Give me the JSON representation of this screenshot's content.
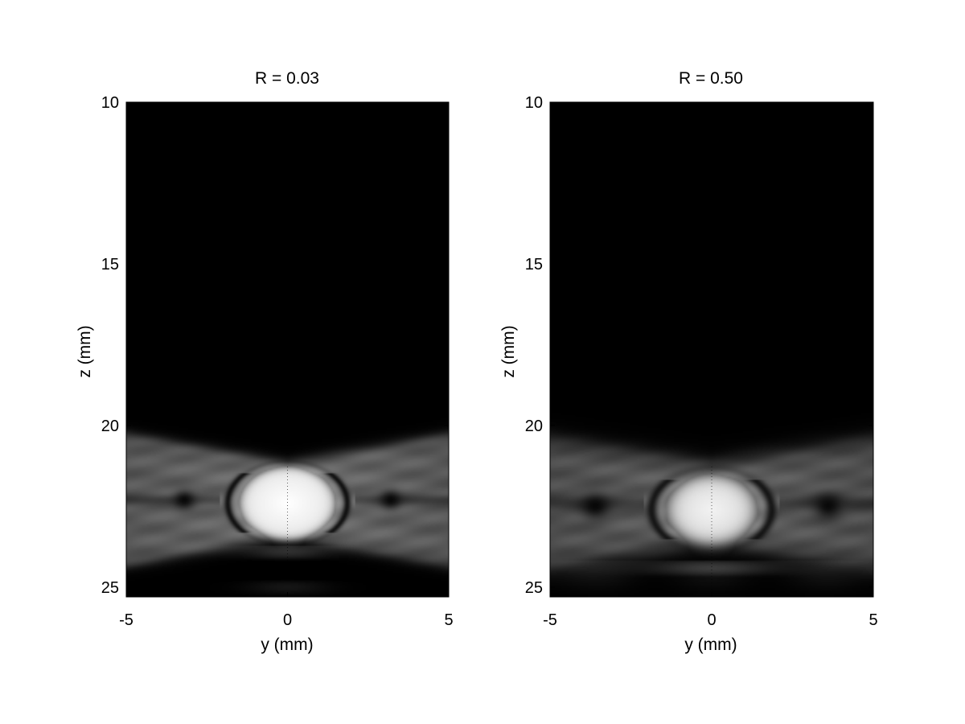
{
  "chart_data": [
    {
      "type": "heatmap",
      "title": "R = 0.03",
      "xlabel": "y (mm)",
      "ylabel": "z (mm)",
      "xlim": [
        -5,
        5
      ],
      "ylim": [
        10,
        25.3
      ],
      "y_axis_reversed": true,
      "colormap": "gray",
      "xticks": [
        -5,
        0,
        5
      ],
      "yticks": [
        10,
        15,
        20,
        25
      ],
      "xtick_labels": [
        "-5",
        "0",
        "5"
      ],
      "ytick_labels": [
        "10",
        "15",
        "20",
        "25"
      ],
      "features": {
        "bright_blob": {
          "y_center": 0,
          "z_center": 22.4,
          "y_radius": 1.6,
          "z_radius": 1.2,
          "intensity": 1.0
        },
        "bowtie_band": {
          "z_center": 22.3,
          "z_half_width_at_center": 1.15,
          "z_half_width_at_edge": 2.05,
          "intensity": 0.45
        },
        "dark_ring": {
          "y_radius": 1.85,
          "z_radius": 1.3,
          "intensity": 0.05
        },
        "side_dark_spots_y": [
          -3.2,
          3.2
        ],
        "side_dark_spots_z": 22.3,
        "bottom_ripple_z": 23.9,
        "center_dotted_line_y": 0
      }
    },
    {
      "type": "heatmap",
      "title": "R = 0.50",
      "xlabel": "y (mm)",
      "ylabel": "z (mm)",
      "xlim": [
        -5,
        5
      ],
      "ylim": [
        10,
        25.3
      ],
      "y_axis_reversed": true,
      "colormap": "gray",
      "xticks": [
        -5,
        0,
        5
      ],
      "yticks": [
        10,
        15,
        20,
        25
      ],
      "xtick_labels": [
        "-5",
        "0",
        "5"
      ],
      "ytick_labels": [
        "10",
        "15",
        "20",
        "25"
      ],
      "features": {
        "bright_blob": {
          "y_center": 0,
          "z_center": 22.6,
          "y_radius": 1.5,
          "z_radius": 1.15,
          "intensity": 0.95
        },
        "bowtie_band": {
          "z_center": 22.4,
          "z_half_width_at_center": 1.2,
          "z_half_width_at_edge": 2.0,
          "intensity": 0.4
        },
        "dark_ring": {
          "y_radius": 1.85,
          "z_radius": 1.3,
          "intensity": 0.12
        },
        "side_dark_spots_y": [
          -3.6,
          3.6
        ],
        "side_dark_spots_z": 22.5,
        "bottom_ripple_z": 24.4,
        "center_dotted_line_y": 0
      }
    }
  ]
}
